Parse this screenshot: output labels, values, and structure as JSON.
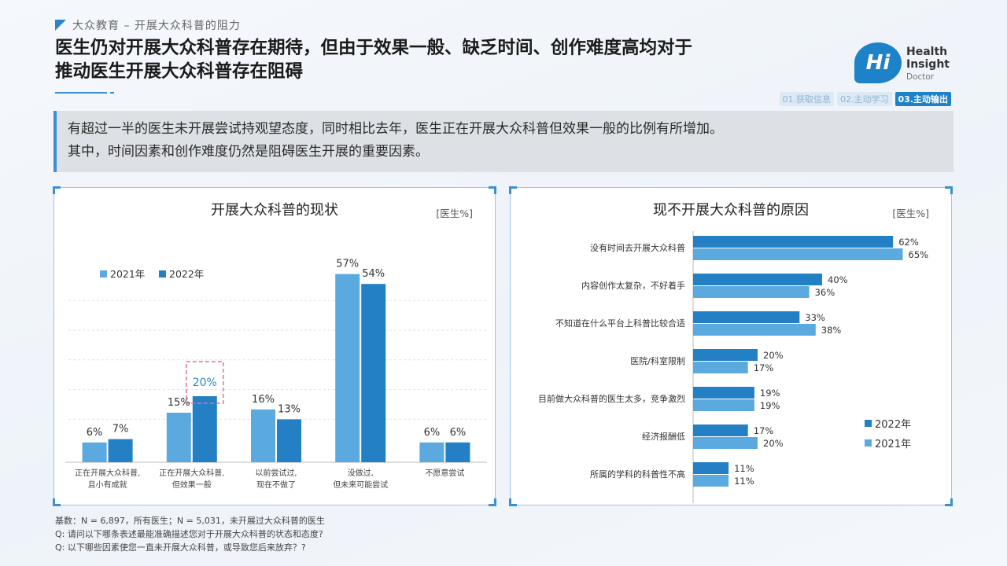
{
  "header": {
    "section_tag": "大众教育 – 开展大众科普的阻力",
    "title_line1": "医生仍对开展大众科普存在期待，但由于效果一般、缺乏时间、创作难度高均对于",
    "title_line2": "推动医生开展大众科普存在阻碍"
  },
  "logo": {
    "mark": "Hi",
    "line1": "Health",
    "line2": "Insight",
    "line3": "Doctor",
    "color": "#1e82c8"
  },
  "steps": [
    {
      "label": "01.获取信息",
      "active": false
    },
    {
      "label": "02.主动学习",
      "active": false
    },
    {
      "label": "03.主动输出",
      "active": true
    }
  ],
  "summary": {
    "line1": "有超过一半的医生未开展尝试持观望态度，同时相比去年，医生正在开展大众科普但效果一般的比例有所增加。",
    "line2": "其中，时间因素和创作难度仍然是阻碍医生开展的重要因素。"
  },
  "colors": {
    "y2021": "#5aaae0",
    "y2022": "#2380c4",
    "highlight": "#e56fa0"
  },
  "chart_data": [
    {
      "type": "bar",
      "title": "开展大众科普的现状",
      "unit": "[医生%]",
      "categories": [
        [
          "正在开展大众科普,",
          "且小有成就"
        ],
        [
          "正在开展大众科普,",
          "但效果一般"
        ],
        [
          "以前尝试过,",
          "现在不做了"
        ],
        [
          "没做过,",
          "但未来可能尝试"
        ],
        [
          "不愿意尝试"
        ]
      ],
      "series": [
        {
          "name": "2021年",
          "values": [
            6,
            15,
            16,
            57,
            6
          ]
        },
        {
          "name": "2022年",
          "values": [
            7,
            20,
            13,
            54,
            6
          ]
        }
      ],
      "highlight": {
        "series": 1,
        "index": 1
      },
      "ylim": [
        0,
        60
      ],
      "grid": true,
      "legend": "top-left"
    },
    {
      "type": "bar",
      "orientation": "horizontal",
      "title": "现不开展大众科普的原因",
      "unit": "[医生%]",
      "categories": [
        "没有时间去开展大众科普",
        "内容创作太复杂，不好着手",
        "不知道在什么平台上科普比较合适",
        "医院/科室限制",
        "目前做大众科普的医生太多，竞争激烈",
        "经济报酬低",
        "所属的学科的科普性不高"
      ],
      "series": [
        {
          "name": "2022年",
          "values": [
            62,
            40,
            33,
            20,
            19,
            17,
            11
          ]
        },
        {
          "name": "2021年",
          "values": [
            65,
            36,
            38,
            17,
            19,
            20,
            11
          ]
        }
      ],
      "xlim": [
        0,
        70
      ],
      "legend": "bottom-right"
    }
  ],
  "footnotes": {
    "base": "基数：N = 6,897，所有医生；N = 5,031，未开展过大众科普的医生",
    "q1": "Q: 请问以下哪条表述最能准确描述您对于开展大众科普的状态和态度?",
    "q2": "Q: 以下哪些因素使您一直未开展大众科普，或导致您后来放弃？?"
  }
}
